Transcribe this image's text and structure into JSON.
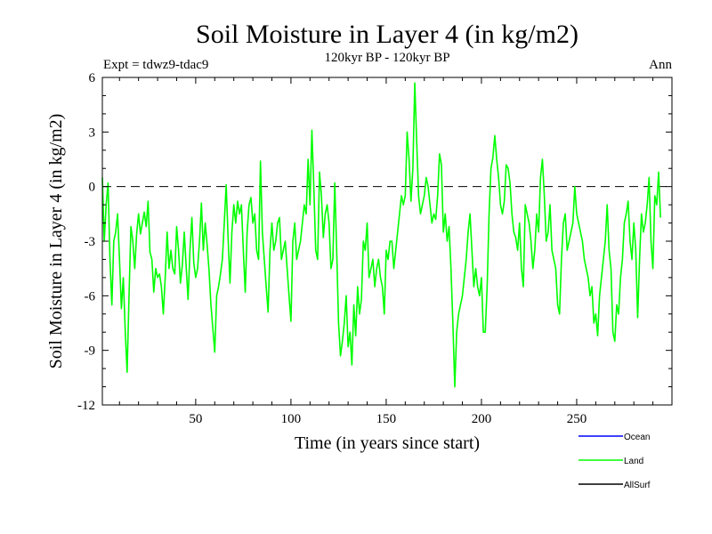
{
  "chart_data": {
    "type": "line",
    "title": "Soil Moisture in Layer 4 (in kg/m2)",
    "subtitle": "120kyr BP - 120kyr BP",
    "experiment_label": "Expt = tdwz9-tdac9",
    "period_label": "Ann",
    "xlabel": "Time (in years since start)",
    "ylabel": "Soil Moisture in Layer 4 (in kg/m2)",
    "xlim": [
      1,
      300
    ],
    "ylim": [
      -12,
      6
    ],
    "x_ticks": [
      50,
      100,
      150,
      200,
      250
    ],
    "y_ticks": [
      6,
      3,
      0,
      -3,
      -6,
      -9,
      -12
    ],
    "reference_line_y": 0,
    "legend": [
      {
        "name": "Ocean",
        "color": "#0000ff"
      },
      {
        "name": "Land",
        "color": "#00ff00"
      },
      {
        "name": "AllSurf",
        "color": "#000000"
      }
    ],
    "series": [
      {
        "name": "Land",
        "color": "#00ff00",
        "x_start": 1,
        "x_step": 1,
        "values": [
          0.5,
          -3.0,
          -1.0,
          0.2,
          -4.0,
          -6.5,
          -3.0,
          -2.5,
          -1.5,
          -4.0,
          -6.7,
          -5.0,
          -7.9,
          -10.2,
          -6.0,
          -2.2,
          -3.0,
          -4.5,
          -2.6,
          -1.5,
          -2.6,
          -2.0,
          -1.4,
          -2.2,
          -0.8,
          -3.6,
          -4.0,
          -5.8,
          -4.5,
          -5.0,
          -4.8,
          -5.5,
          -7.0,
          -5.0,
          -2.5,
          -4.5,
          -3.5,
          -4.5,
          -4.8,
          -2.2,
          -3.5,
          -5.3,
          -4.3,
          -2.5,
          -4.4,
          -6.2,
          -3.5,
          -1.7,
          -4.2,
          -5.0,
          -4.5,
          -3.0,
          -0.9,
          -3.5,
          -2.0,
          -3.2,
          -4.6,
          -6.5,
          -7.8,
          -9.1,
          -6.0,
          -5.5,
          -4.8,
          -4.0,
          -2.0,
          0.1,
          -2.8,
          -5.3,
          -2.5,
          -1.0,
          -2.0,
          -0.8,
          -1.5,
          -1.0,
          -3.5,
          -5.8,
          -2.5,
          -1.0,
          -0.6,
          -2.0,
          -1.5,
          -3.5,
          -4.0,
          1.4,
          -2.5,
          -4.0,
          -5.5,
          -6.9,
          -3.5,
          -2.0,
          -3.5,
          -3.0,
          -2.0,
          -1.7,
          -4.0,
          -3.5,
          -3.0,
          -4.5,
          -6.0,
          -7.4,
          -3.0,
          -2.0,
          -4.0,
          -3.5,
          -3.0,
          -2.0,
          -1.0,
          -1.5,
          1.5,
          -1.0,
          3.1,
          0.0,
          -3.5,
          -4.0,
          0.8,
          -0.5,
          -2.8,
          -1.5,
          -1.0,
          -2.0,
          -4.5,
          -4.0,
          0.2,
          -3.5,
          -7.5,
          -9.3,
          -8.5,
          -7.5,
          -6.0,
          -8.8,
          -8.0,
          -9.8,
          -6.5,
          -8.2,
          -5.5,
          -7.0,
          -6.2,
          -3.0,
          -3.5,
          -2.0,
          -5.0,
          -4.5,
          -4.0,
          -5.5,
          -4.5,
          -4.0,
          -5.0,
          -5.5,
          -7.0,
          -3.5,
          -4.0,
          -3.0,
          -3.0,
          -4.5,
          -3.5,
          -2.5,
          -1.5,
          -0.5,
          -1.0,
          -0.5,
          3.0,
          1.5,
          -0.8,
          1.0,
          5.7,
          2.5,
          -0.5,
          -1.5,
          -1.0,
          -0.5,
          0.5,
          0.0,
          -1.0,
          -2.0,
          -1.5,
          -1.8,
          -0.5,
          1.8,
          1.2,
          -2.5,
          -1.5,
          -3.0,
          -2.2,
          -4.5,
          -7.5,
          -11.0,
          -8.0,
          -7.0,
          -6.5,
          -6.0,
          -5.0,
          -4.0,
          -2.5,
          -1.5,
          -3.5,
          -5.5,
          -4.5,
          -5.5,
          -6.0,
          -5.0,
          -8.0,
          -8.0,
          -5.5,
          -1.5,
          1.0,
          1.6,
          2.8,
          1.5,
          0.5,
          -1.0,
          -1.5,
          -0.8,
          1.2,
          1.0,
          0.2,
          -1.5,
          -2.5,
          -2.8,
          -3.5,
          -2.0,
          -4.5,
          -5.5,
          -1.0,
          -1.5,
          -2.0,
          -3.0,
          -4.5,
          -3.5,
          -1.5,
          -2.5,
          0.5,
          1.5,
          -0.5,
          -3.0,
          -2.5,
          -1.0,
          -3.5,
          -4.0,
          -4.5,
          -6.5,
          -7.0,
          -4.0,
          -2.0,
          -1.5,
          -3.5,
          -3.0,
          -2.5,
          -2.0,
          0.0,
          -1.5,
          -2.0,
          -2.5,
          -3.0,
          -4.0,
          -4.5,
          -5.0,
          -6.0,
          -5.5,
          -7.5,
          -7.0,
          -8.2,
          -6.0,
          -5.0,
          -4.0,
          -3.0,
          -1.0,
          -3.5,
          -4.5,
          -8.0,
          -8.5,
          -6.5,
          -7.0,
          -5.0,
          -4.0,
          -2.0,
          -1.5,
          -0.8,
          -3.0,
          -4.0,
          -2.0,
          -3.5,
          -7.2,
          -4.0,
          -1.5,
          -2.5,
          -2.0,
          -1.0,
          0.5,
          -3.0,
          -4.5,
          -0.5,
          -1.0,
          0.8,
          -1.7
        ]
      }
    ]
  }
}
